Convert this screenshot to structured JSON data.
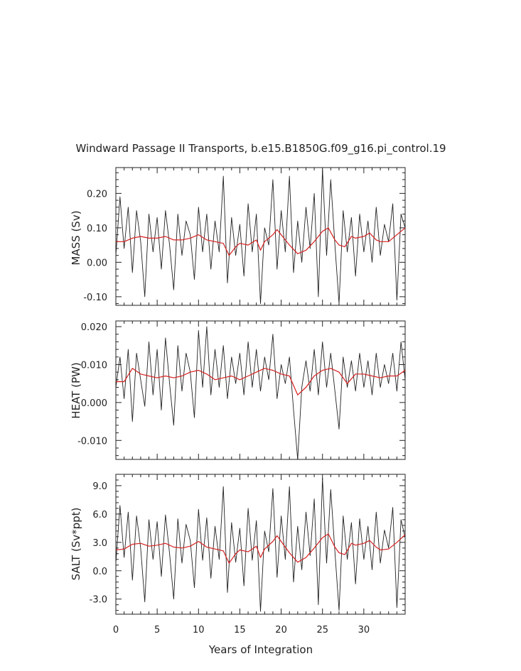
{
  "title": "Windward Passage II Transports, b.e15.B1850G.f09_g16.pi_control.19",
  "chart_data": [
    {
      "type": "line",
      "ylabel": "MASS (Sv)",
      "xlabel": "",
      "xlim": [
        0,
        35
      ],
      "ylim": [
        -0.125,
        0.275
      ],
      "yticks": [
        -0.1,
        0.0,
        0.1,
        0.2
      ],
      "ytick_labels": [
        "-0.10",
        "0.00",
        "0.10",
        "0.20"
      ],
      "series": [
        {
          "color": "#222222",
          "x": [
            0.0,
            0.5,
            1.0,
            1.5,
            2.0,
            2.5,
            3.0,
            3.5,
            4.0,
            4.5,
            5.0,
            5.5,
            6.0,
            6.5,
            7.0,
            7.5,
            8.0,
            8.5,
            9.0,
            9.5,
            10.0,
            10.5,
            11.0,
            11.5,
            12.0,
            12.5,
            13.0,
            13.5,
            14.0,
            14.5,
            15.0,
            15.5,
            16.0,
            16.5,
            17.0,
            17.5,
            18.0,
            18.5,
            19.0,
            19.5,
            20.0,
            20.5,
            21.0,
            21.5,
            22.0,
            22.5,
            23.0,
            23.5,
            24.0,
            24.5,
            25.0,
            25.5,
            26.0,
            26.5,
            27.0,
            27.5,
            28.0,
            28.5,
            29.0,
            29.5,
            30.0,
            30.5,
            31.0,
            31.5,
            32.0,
            32.5,
            33.0,
            33.5,
            34.0,
            34.5,
            35.0
          ],
          "values": [
            0.02,
            0.19,
            0.04,
            0.16,
            -0.03,
            0.15,
            0.06,
            -0.1,
            0.14,
            0.03,
            0.13,
            -0.02,
            0.15,
            0.05,
            -0.08,
            0.14,
            0.02,
            0.12,
            0.08,
            -0.05,
            0.16,
            0.03,
            0.14,
            -0.02,
            0.12,
            0.03,
            0.25,
            -0.06,
            0.13,
            0.02,
            0.11,
            -0.04,
            0.17,
            0.03,
            0.14,
            -0.12,
            0.1,
            0.05,
            0.24,
            -0.02,
            0.15,
            0.03,
            0.25,
            -0.03,
            0.12,
            0.0,
            0.16,
            0.04,
            0.2,
            -0.1,
            0.27,
            0.02,
            0.24,
            0.05,
            -0.12,
            0.15,
            0.03,
            0.13,
            -0.04,
            0.14,
            0.03,
            0.12,
            0.0,
            0.16,
            0.02,
            0.11,
            0.06,
            0.17,
            -0.11,
            0.14,
            0.1
          ]
        },
        {
          "color": "#d62020",
          "x": [
            0.0,
            1.0,
            2.0,
            3.0,
            4.0,
            5.0,
            6.0,
            7.0,
            8.0,
            9.0,
            10.0,
            11.0,
            12.0,
            13.0,
            13.7,
            14.5,
            15.0,
            16.0,
            17.0,
            17.5,
            18.0,
            19.0,
            19.5,
            20.0,
            21.0,
            22.0,
            23.0,
            24.0,
            25.0,
            25.7,
            26.5,
            27.0,
            27.7,
            28.5,
            29.0,
            30.0,
            30.7,
            31.5,
            32.0,
            33.0,
            34.0,
            35.0
          ],
          "values": [
            0.06,
            0.06,
            0.07,
            0.075,
            0.07,
            0.07,
            0.075,
            0.065,
            0.065,
            0.07,
            0.08,
            0.065,
            0.06,
            0.055,
            0.02,
            0.045,
            0.055,
            0.05,
            0.065,
            0.035,
            0.06,
            0.08,
            0.095,
            0.08,
            0.05,
            0.025,
            0.035,
            0.06,
            0.09,
            0.1,
            0.065,
            0.05,
            0.045,
            0.075,
            0.07,
            0.075,
            0.085,
            0.065,
            0.06,
            0.06,
            0.08,
            0.1
          ]
        }
      ]
    },
    {
      "type": "line",
      "ylabel": "HEAT (PW)",
      "xlabel": "",
      "xlim": [
        0,
        35
      ],
      "ylim": [
        -0.015,
        0.0215
      ],
      "yticks": [
        -0.01,
        0.0,
        0.01,
        0.02
      ],
      "ytick_labels": [
        "-0.010",
        "0.000",
        "0.010",
        "0.020"
      ],
      "series": [
        {
          "color": "#222222",
          "x": [
            0.0,
            0.5,
            1.0,
            1.5,
            2.0,
            2.5,
            3.0,
            3.5,
            4.0,
            4.5,
            5.0,
            5.5,
            6.0,
            6.5,
            7.0,
            7.5,
            8.0,
            8.5,
            9.0,
            9.5,
            10.0,
            10.5,
            11.0,
            11.5,
            12.0,
            12.5,
            13.0,
            13.5,
            14.0,
            14.5,
            15.0,
            15.5,
            16.0,
            16.5,
            17.0,
            17.5,
            18.0,
            18.5,
            19.0,
            19.5,
            20.0,
            20.5,
            21.0,
            21.5,
            22.0,
            22.5,
            23.0,
            23.5,
            24.0,
            24.5,
            25.0,
            25.5,
            26.0,
            26.5,
            27.0,
            27.5,
            28.0,
            28.5,
            29.0,
            29.5,
            30.0,
            30.5,
            31.0,
            31.5,
            32.0,
            32.5,
            33.0,
            33.5,
            34.0,
            34.5,
            35.0
          ],
          "values": [
            0.004,
            0.012,
            0.001,
            0.014,
            -0.005,
            0.013,
            0.006,
            -0.001,
            0.016,
            0.002,
            0.014,
            -0.002,
            0.017,
            0.005,
            -0.006,
            0.015,
            0.003,
            0.013,
            0.008,
            -0.004,
            0.019,
            0.004,
            0.02,
            0.002,
            0.014,
            0.004,
            0.015,
            0.001,
            0.012,
            0.005,
            0.013,
            0.002,
            0.016,
            0.004,
            0.014,
            0.003,
            0.012,
            0.006,
            0.018,
            0.001,
            0.01,
            0.005,
            0.012,
            -0.002,
            -0.015,
            0.004,
            0.011,
            0.003,
            0.014,
            0.002,
            0.016,
            0.004,
            0.013,
            0.003,
            -0.007,
            0.012,
            0.004,
            0.011,
            0.003,
            0.013,
            0.004,
            0.011,
            0.002,
            0.013,
            0.004,
            0.01,
            0.005,
            0.013,
            0.003,
            0.016,
            0.006
          ]
        },
        {
          "color": "#d62020",
          "x": [
            0.0,
            1.0,
            2.0,
            3.0,
            4.0,
            5.0,
            6.0,
            7.0,
            8.0,
            9.0,
            10.0,
            11.0,
            12.0,
            13.0,
            14.0,
            15.0,
            16.0,
            17.0,
            18.0,
            19.0,
            20.0,
            21.0,
            22.0,
            23.0,
            24.0,
            25.0,
            26.0,
            27.0,
            28.0,
            29.0,
            30.0,
            31.0,
            32.0,
            33.0,
            34.0,
            35.0
          ],
          "values": [
            0.0055,
            0.0055,
            0.009,
            0.0075,
            0.007,
            0.0065,
            0.007,
            0.0065,
            0.007,
            0.008,
            0.0085,
            0.0075,
            0.006,
            0.0065,
            0.007,
            0.006,
            0.007,
            0.008,
            0.009,
            0.0085,
            0.0075,
            0.007,
            0.002,
            0.004,
            0.007,
            0.0085,
            0.009,
            0.008,
            0.005,
            0.0075,
            0.0075,
            0.007,
            0.0065,
            0.007,
            0.007,
            0.0085
          ]
        }
      ]
    },
    {
      "type": "line",
      "ylabel": "SALT (Sv*ppt)",
      "xlabel": "Years of Integration",
      "xlim": [
        0,
        35
      ],
      "ylim": [
        -4.6,
        10.2
      ],
      "xticks": [
        0,
        5,
        10,
        15,
        20,
        25,
        30
      ],
      "xtick_labels": [
        "0",
        "5",
        "10",
        "15",
        "20",
        "25",
        "30"
      ],
      "yticks": [
        -3.0,
        0.0,
        3.0,
        6.0,
        9.0
      ],
      "ytick_labels": [
        "-3.0",
        "0.0",
        "3.0",
        "6.0",
        "9.0"
      ],
      "series": [
        {
          "color": "#222222",
          "x": [
            0.0,
            0.5,
            1.0,
            1.5,
            2.0,
            2.5,
            3.0,
            3.5,
            4.0,
            4.5,
            5.0,
            5.5,
            6.0,
            6.5,
            7.0,
            7.5,
            8.0,
            8.5,
            9.0,
            9.5,
            10.0,
            10.5,
            11.0,
            11.5,
            12.0,
            12.5,
            13.0,
            13.5,
            14.0,
            14.5,
            15.0,
            15.5,
            16.0,
            16.5,
            17.0,
            17.5,
            18.0,
            18.5,
            19.0,
            19.5,
            20.0,
            20.5,
            21.0,
            21.5,
            22.0,
            22.5,
            23.0,
            23.5,
            24.0,
            24.5,
            25.0,
            25.5,
            26.0,
            26.5,
            27.0,
            27.5,
            28.0,
            28.5,
            29.0,
            29.5,
            30.0,
            30.5,
            31.0,
            31.5,
            32.0,
            32.5,
            33.0,
            33.5,
            34.0,
            34.5,
            35.0
          ],
          "values": [
            0.8,
            6.9,
            1.4,
            6.2,
            -1.0,
            5.8,
            2.4,
            -3.3,
            5.4,
            1.2,
            5.2,
            -0.6,
            5.9,
            1.8,
            -3.0,
            5.5,
            0.8,
            4.9,
            3.2,
            -1.8,
            6.5,
            1.1,
            5.6,
            -0.8,
            4.7,
            1.2,
            8.9,
            -2.3,
            5.1,
            0.9,
            4.5,
            -1.6,
            6.6,
            1.1,
            5.3,
            -4.3,
            4.2,
            2.0,
            8.7,
            -0.7,
            5.8,
            1.2,
            8.9,
            -1.2,
            4.7,
            0.1,
            6.2,
            1.6,
            7.6,
            -3.6,
            9.8,
            0.8,
            8.6,
            2.0,
            -4.2,
            5.8,
            1.2,
            5.1,
            -1.4,
            5.5,
            1.2,
            4.7,
            0.1,
            6.2,
            0.8,
            4.3,
            2.4,
            6.7,
            -3.9,
            5.4,
            3.5
          ]
        },
        {
          "color": "#d62020",
          "x": [
            0.0,
            1.0,
            2.0,
            3.0,
            4.0,
            5.0,
            6.0,
            7.0,
            8.0,
            9.0,
            10.0,
            11.0,
            12.0,
            13.0,
            13.7,
            14.5,
            15.0,
            16.0,
            17.0,
            17.5,
            18.0,
            19.0,
            19.5,
            20.0,
            21.0,
            22.0,
            23.0,
            24.0,
            25.0,
            25.7,
            26.5,
            27.0,
            27.7,
            28.5,
            29.0,
            30.0,
            30.7,
            31.5,
            32.0,
            33.0,
            34.0,
            35.0
          ],
          "values": [
            2.2,
            2.3,
            2.8,
            2.9,
            2.6,
            2.7,
            2.9,
            2.5,
            2.4,
            2.6,
            3.1,
            2.5,
            2.3,
            2.1,
            0.8,
            1.8,
            2.2,
            2.0,
            2.6,
            1.4,
            2.3,
            3.1,
            3.7,
            3.1,
            1.9,
            0.9,
            1.4,
            2.4,
            3.5,
            3.9,
            2.5,
            1.9,
            1.7,
            2.9,
            2.7,
            2.9,
            3.2,
            2.5,
            2.2,
            2.3,
            3.0,
            3.8
          ]
        }
      ]
    }
  ]
}
